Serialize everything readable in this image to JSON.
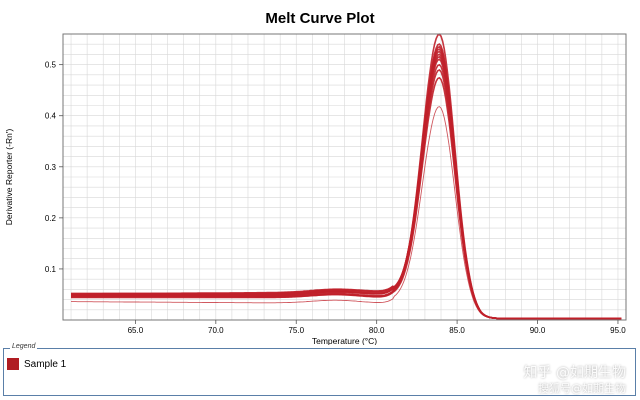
{
  "chart_data": {
    "type": "line",
    "title": "Melt Curve Plot",
    "xlabel": "Temperature (°C)",
    "ylabel": "Derivative Reporter (-Rn')",
    "xlim": [
      60.5,
      95.5
    ],
    "ylim": [
      0.0,
      0.56
    ],
    "x_ticks": [
      65.0,
      70.0,
      75.0,
      80.0,
      85.0,
      90.0,
      95.0
    ],
    "y_ticks": [
      0.1,
      0.2,
      0.3,
      0.4,
      0.5
    ],
    "grid": true,
    "legend_position": "bottom",
    "series_color": "#c0202a",
    "peak_temperature": 83.9,
    "series": [
      {
        "peak": 0.55,
        "baseline": 0.045
      },
      {
        "peak": 0.53,
        "baseline": 0.05
      },
      {
        "peak": 0.525,
        "baseline": 0.048
      },
      {
        "peak": 0.52,
        "baseline": 0.05
      },
      {
        "peak": 0.515,
        "baseline": 0.052
      },
      {
        "peak": 0.51,
        "baseline": 0.049
      },
      {
        "peak": 0.505,
        "baseline": 0.051
      },
      {
        "peak": 0.5,
        "baseline": 0.05
      },
      {
        "peak": 0.49,
        "baseline": 0.047
      },
      {
        "peak": 0.48,
        "baseline": 0.046
      },
      {
        "peak": 0.465,
        "baseline": 0.044
      },
      {
        "peak": 0.41,
        "baseline": 0.036
      }
    ]
  },
  "legend": {
    "caption": "Legend",
    "items": [
      {
        "label": "Sample 1",
        "color": "#b01c22"
      }
    ]
  },
  "watermark": {
    "line1": "知乎 @如期生物",
    "line2": "搜狐号@如期生物"
  }
}
